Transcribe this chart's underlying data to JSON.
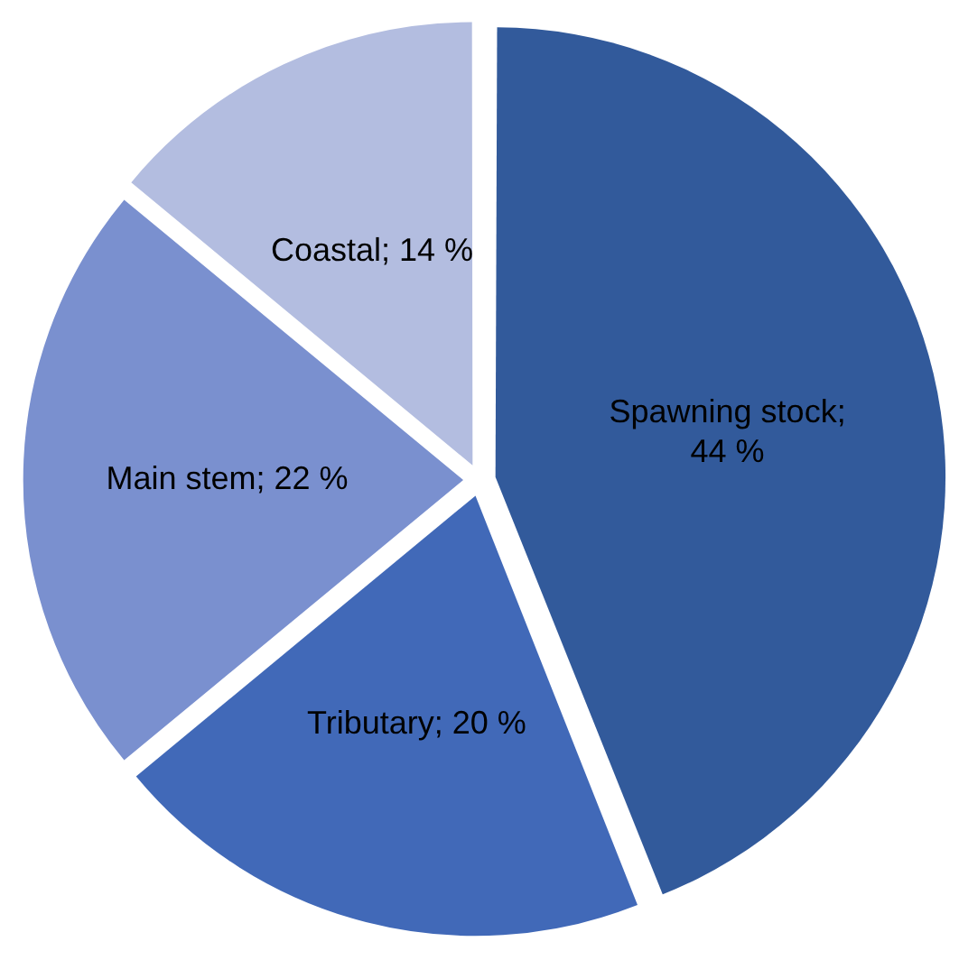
{
  "chart_data": {
    "type": "pie",
    "categories": [
      "Spawning stock",
      "Tributary",
      "Main stem",
      "Coastal"
    ],
    "values": [
      44,
      20,
      22,
      14
    ],
    "colors": [
      "#325a9b",
      "#4169b8",
      "#7a90cf",
      "#b3bde0"
    ],
    "value_labels": [
      "; 44 %",
      "; 20 %",
      "; 22 %",
      "; 14 %"
    ],
    "legend": false
  }
}
